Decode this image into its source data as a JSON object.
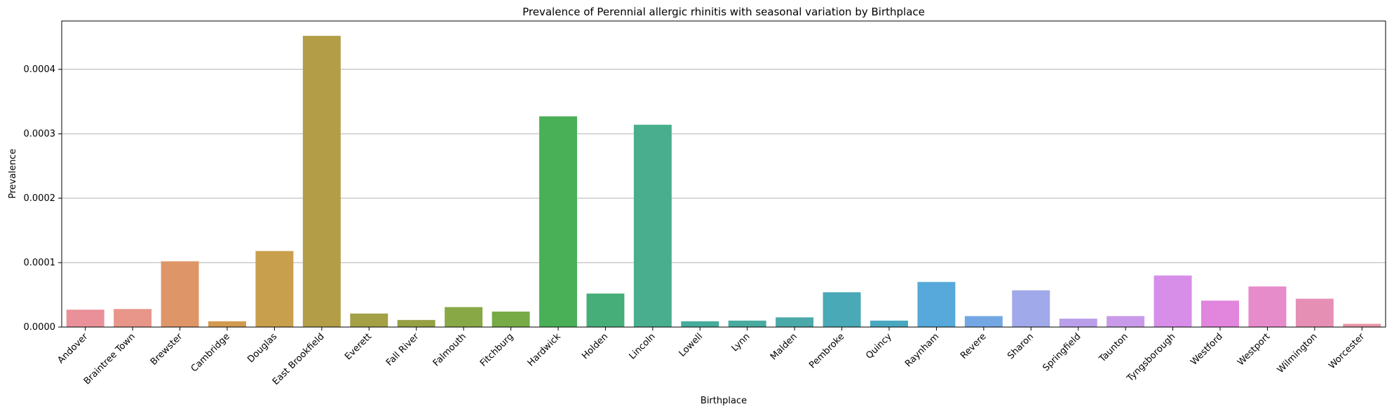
{
  "chart_data": {
    "type": "bar",
    "title": "Prevalence of Perennial allergic rhinitis with seasonal variation by Birthplace",
    "xlabel": "Birthplace",
    "ylabel": "Prevalence",
    "ylim": [
      0,
      0.000475
    ],
    "yticks": [
      {
        "value": 0,
        "label": "0.0000"
      },
      {
        "value": 0.0001,
        "label": "0.0001"
      },
      {
        "value": 0.0002,
        "label": "0.0002"
      },
      {
        "value": 0.0003,
        "label": "0.0003"
      },
      {
        "value": 0.0004,
        "label": "0.0004"
      }
    ],
    "grid": "horizontal",
    "categories": [
      "Andover",
      "Braintree Town",
      "Brewster",
      "Cambridge",
      "Douglas",
      "East Brookfield",
      "Everett",
      "Fall River",
      "Falmouth",
      "Fitchburg",
      "Hardwick",
      "Holden",
      "Lincoln",
      "Lowell",
      "Lynn",
      "Malden",
      "Pembroke",
      "Quincy",
      "Raynham",
      "Revere",
      "Sharon",
      "Springfield",
      "Taunton",
      "Tyngsborough",
      "Westford",
      "Westport",
      "Wilmington",
      "Worcester"
    ],
    "values": [
      2.7e-05,
      2.8e-05,
      0.000102,
      9e-06,
      0.000118,
      0.000452,
      2.1e-05,
      1.1e-05,
      3.1e-05,
      2.4e-05,
      0.000327,
      5.2e-05,
      0.000314,
      9e-06,
      1e-05,
      1.5e-05,
      5.4e-05,
      1e-05,
      7e-05,
      1.7e-05,
      5.7e-05,
      1.3e-05,
      1.7e-05,
      8e-05,
      4.1e-05,
      6.3e-05,
      4.4e-05,
      5e-06
    ],
    "colors": [
      "#e99099",
      "#e8968a",
      "#de9668",
      "#d29a4f",
      "#c89f4c",
      "#b39e47",
      "#a3a046",
      "#95a144",
      "#88a845",
      "#76ab46",
      "#49b058",
      "#46ae78",
      "#48ae8e",
      "#47ab9d",
      "#48ab9f",
      "#49aaa9",
      "#49a9b6",
      "#49a7c0",
      "#56a9da",
      "#72a7e3",
      "#a0a9e9",
      "#b99ee9",
      "#c99ae9",
      "#d78ee8",
      "#e185dd",
      "#e78ccb",
      "#e68fb5",
      "#e893a6"
    ]
  }
}
